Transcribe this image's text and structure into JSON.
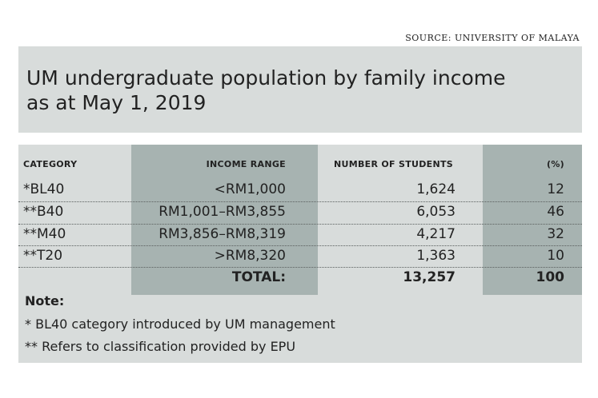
{
  "source": "SOURCE: UNIVERSITY OF MALAYA",
  "title_line1": "UM undergraduate population by family income",
  "title_line2": "as at May 1, 2019",
  "headers": {
    "category": "CATEGORY",
    "income_range": "INCOME RANGE",
    "students": "NUMBER OF STUDENTS",
    "percent": "(%)"
  },
  "rows": [
    {
      "category": "*BL40",
      "income_range": "<RM1,000",
      "students": "1,624",
      "percent": "12"
    },
    {
      "category": "**B40",
      "income_range": "RM1,001–RM3,855",
      "students": "6,053",
      "percent": "46"
    },
    {
      "category": "**M40",
      "income_range": "RM3,856–RM8,319",
      "students": "4,217",
      "percent": "32"
    },
    {
      "category": "**T20",
      "income_range": ">RM8,320",
      "students": "1,363",
      "percent": "10"
    }
  ],
  "total": {
    "label": "TOTAL:",
    "students": "13,257",
    "percent": "100"
  },
  "note": {
    "heading": "Note:",
    "line1": "* BL40 category introduced by UM management",
    "line2": "** Refers to classification provided by EPU"
  }
}
